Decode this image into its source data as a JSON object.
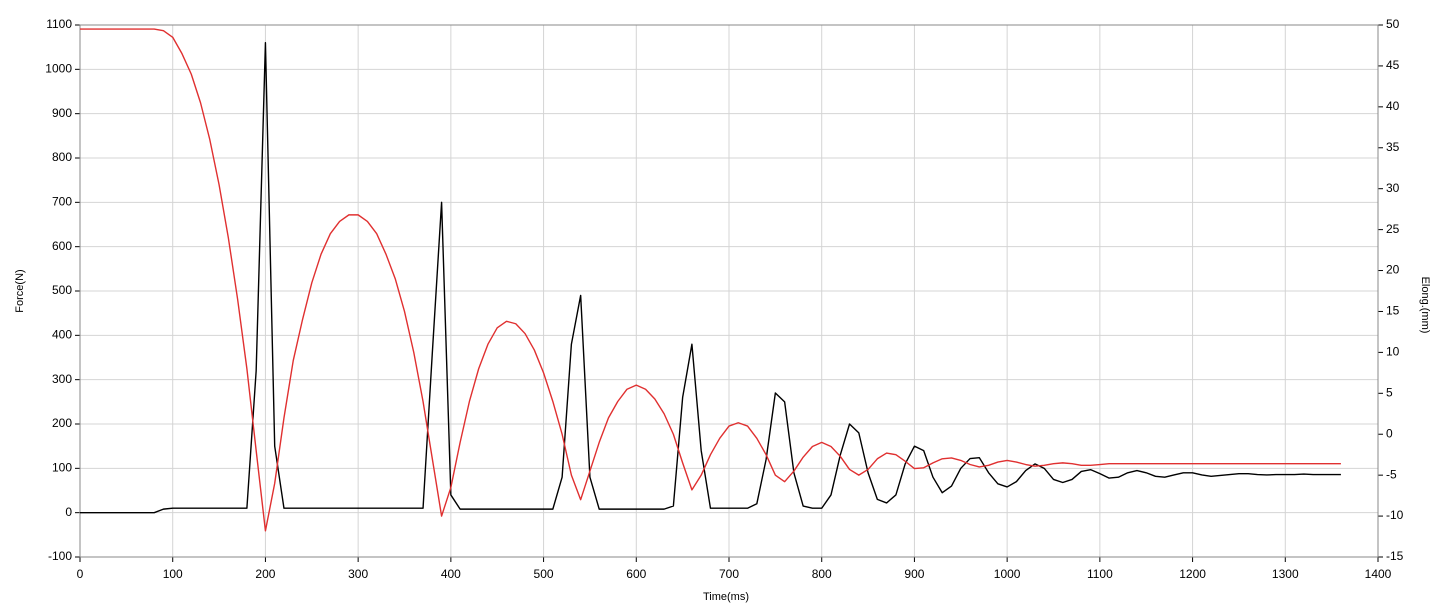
{
  "chart_data": {
    "type": "line",
    "x_label": "Time(ms)",
    "y_label": "Force(N)",
    "y2_label": "Elong.(mm)",
    "x": [
      0,
      10,
      20,
      30,
      40,
      50,
      60,
      70,
      80,
      90,
      100,
      110,
      120,
      130,
      140,
      150,
      160,
      170,
      180,
      190,
      200,
      210,
      220,
      230,
      240,
      250,
      260,
      270,
      280,
      290,
      300,
      310,
      320,
      330,
      340,
      350,
      360,
      370,
      380,
      390,
      400,
      410,
      420,
      430,
      440,
      450,
      460,
      470,
      480,
      490,
      500,
      510,
      520,
      530,
      540,
      550,
      560,
      570,
      580,
      590,
      600,
      610,
      620,
      630,
      640,
      650,
      660,
      670,
      680,
      690,
      700,
      710,
      720,
      730,
      740,
      750,
      760,
      770,
      780,
      790,
      800,
      810,
      820,
      830,
      840,
      850,
      860,
      870,
      880,
      890,
      900,
      910,
      920,
      930,
      940,
      950,
      960,
      970,
      980,
      990,
      1000,
      1010,
      1020,
      1030,
      1040,
      1050,
      1060,
      1070,
      1080,
      1090,
      1100,
      1110,
      1120,
      1130,
      1140,
      1150,
      1160,
      1170,
      1180,
      1190,
      1200,
      1210,
      1220,
      1230,
      1240,
      1250,
      1260,
      1270,
      1280,
      1290,
      1300,
      1310,
      1320,
      1330,
      1340,
      1350,
      1360
    ],
    "series": [
      {
        "color": "#000000",
        "axis": "y",
        "values": [
          0,
          0,
          0,
          0,
          0,
          0,
          0,
          0,
          0,
          8,
          10,
          10,
          10,
          10,
          10,
          10,
          10,
          10,
          10,
          320,
          1060,
          150,
          10,
          10,
          10,
          10,
          10,
          10,
          10,
          10,
          10,
          10,
          10,
          10,
          10,
          10,
          10,
          10,
          360,
          700,
          40,
          8,
          8,
          8,
          8,
          8,
          8,
          8,
          8,
          8,
          8,
          8,
          80,
          380,
          490,
          80,
          8,
          8,
          8,
          8,
          8,
          8,
          8,
          8,
          15,
          260,
          380,
          140,
          10,
          10,
          10,
          10,
          10,
          20,
          120,
          270,
          250,
          90,
          15,
          10,
          10,
          40,
          130,
          200,
          180,
          90,
          30,
          22,
          40,
          110,
          150,
          140,
          80,
          45,
          60,
          100,
          122,
          124,
          90,
          65,
          58,
          70,
          95,
          110,
          100,
          75,
          68,
          75,
          93,
          97,
          88,
          78,
          80,
          90,
          95,
          90,
          82,
          80,
          85,
          90,
          90,
          85,
          82,
          84,
          86,
          88,
          88,
          86,
          85,
          86,
          86,
          86,
          87,
          86,
          86,
          86,
          86
        ]
      },
      {
        "color": "#e03030",
        "axis": "y2",
        "values": [
          49.5,
          49.5,
          49.5,
          49.5,
          49.5,
          49.5,
          49.5,
          49.5,
          49.5,
          49.3,
          48.5,
          46.5,
          44,
          40.5,
          36,
          30.5,
          24,
          16.5,
          8,
          -2,
          -11.8,
          -6,
          2,
          9,
          14,
          18.5,
          22,
          24.5,
          26,
          26.8,
          26.8,
          26,
          24.5,
          22,
          19,
          15,
          10,
          4,
          -3,
          -10,
          -6.5,
          -1,
          4,
          8,
          11,
          13,
          13.8,
          13.5,
          12.3,
          10.3,
          7.5,
          4,
          0,
          -5,
          -8,
          -4.5,
          -1,
          2,
          4,
          5.5,
          6,
          5.5,
          4.3,
          2.5,
          0,
          -3.5,
          -6.8,
          -5,
          -2.5,
          -0.5,
          1,
          1.4,
          1,
          -0.5,
          -2.5,
          -5,
          -5.8,
          -4.5,
          -2.8,
          -1.5,
          -1,
          -1.5,
          -2.7,
          -4.3,
          -5,
          -4.3,
          -3,
          -2.3,
          -2.5,
          -3.3,
          -4.2,
          -4.1,
          -3.5,
          -3,
          -2.9,
          -3.2,
          -3.7,
          -4,
          -3.8,
          -3.4,
          -3.2,
          -3.4,
          -3.7,
          -3.9,
          -3.8,
          -3.6,
          -3.5,
          -3.6,
          -3.8,
          -3.8,
          -3.7,
          -3.6,
          -3.6,
          -3.6,
          -3.6,
          -3.6,
          -3.6,
          -3.6,
          -3.6,
          -3.6,
          -3.6,
          -3.6,
          -3.6,
          -3.6,
          -3.6,
          -3.6,
          -3.6,
          -3.6,
          -3.6,
          -3.6,
          -3.6,
          -3.6,
          -3.6,
          -3.6,
          -3.6,
          -3.6,
          -3.6
        ]
      }
    ],
    "xlim": [
      0,
      1400
    ],
    "xticks": [
      0,
      100,
      200,
      300,
      400,
      500,
      600,
      700,
      800,
      900,
      1000,
      1100,
      1200,
      1300,
      1400
    ],
    "ylim": [
      -100,
      1100
    ],
    "yticks": [
      -100,
      0,
      100,
      200,
      300,
      400,
      500,
      600,
      700,
      800,
      900,
      1000,
      1100
    ],
    "y2lim": [
      -15,
      50
    ],
    "y2ticks": [
      -15,
      -10,
      -5,
      0,
      5,
      10,
      15,
      20,
      25,
      30,
      35,
      40,
      45,
      50
    ],
    "grid": true
  }
}
